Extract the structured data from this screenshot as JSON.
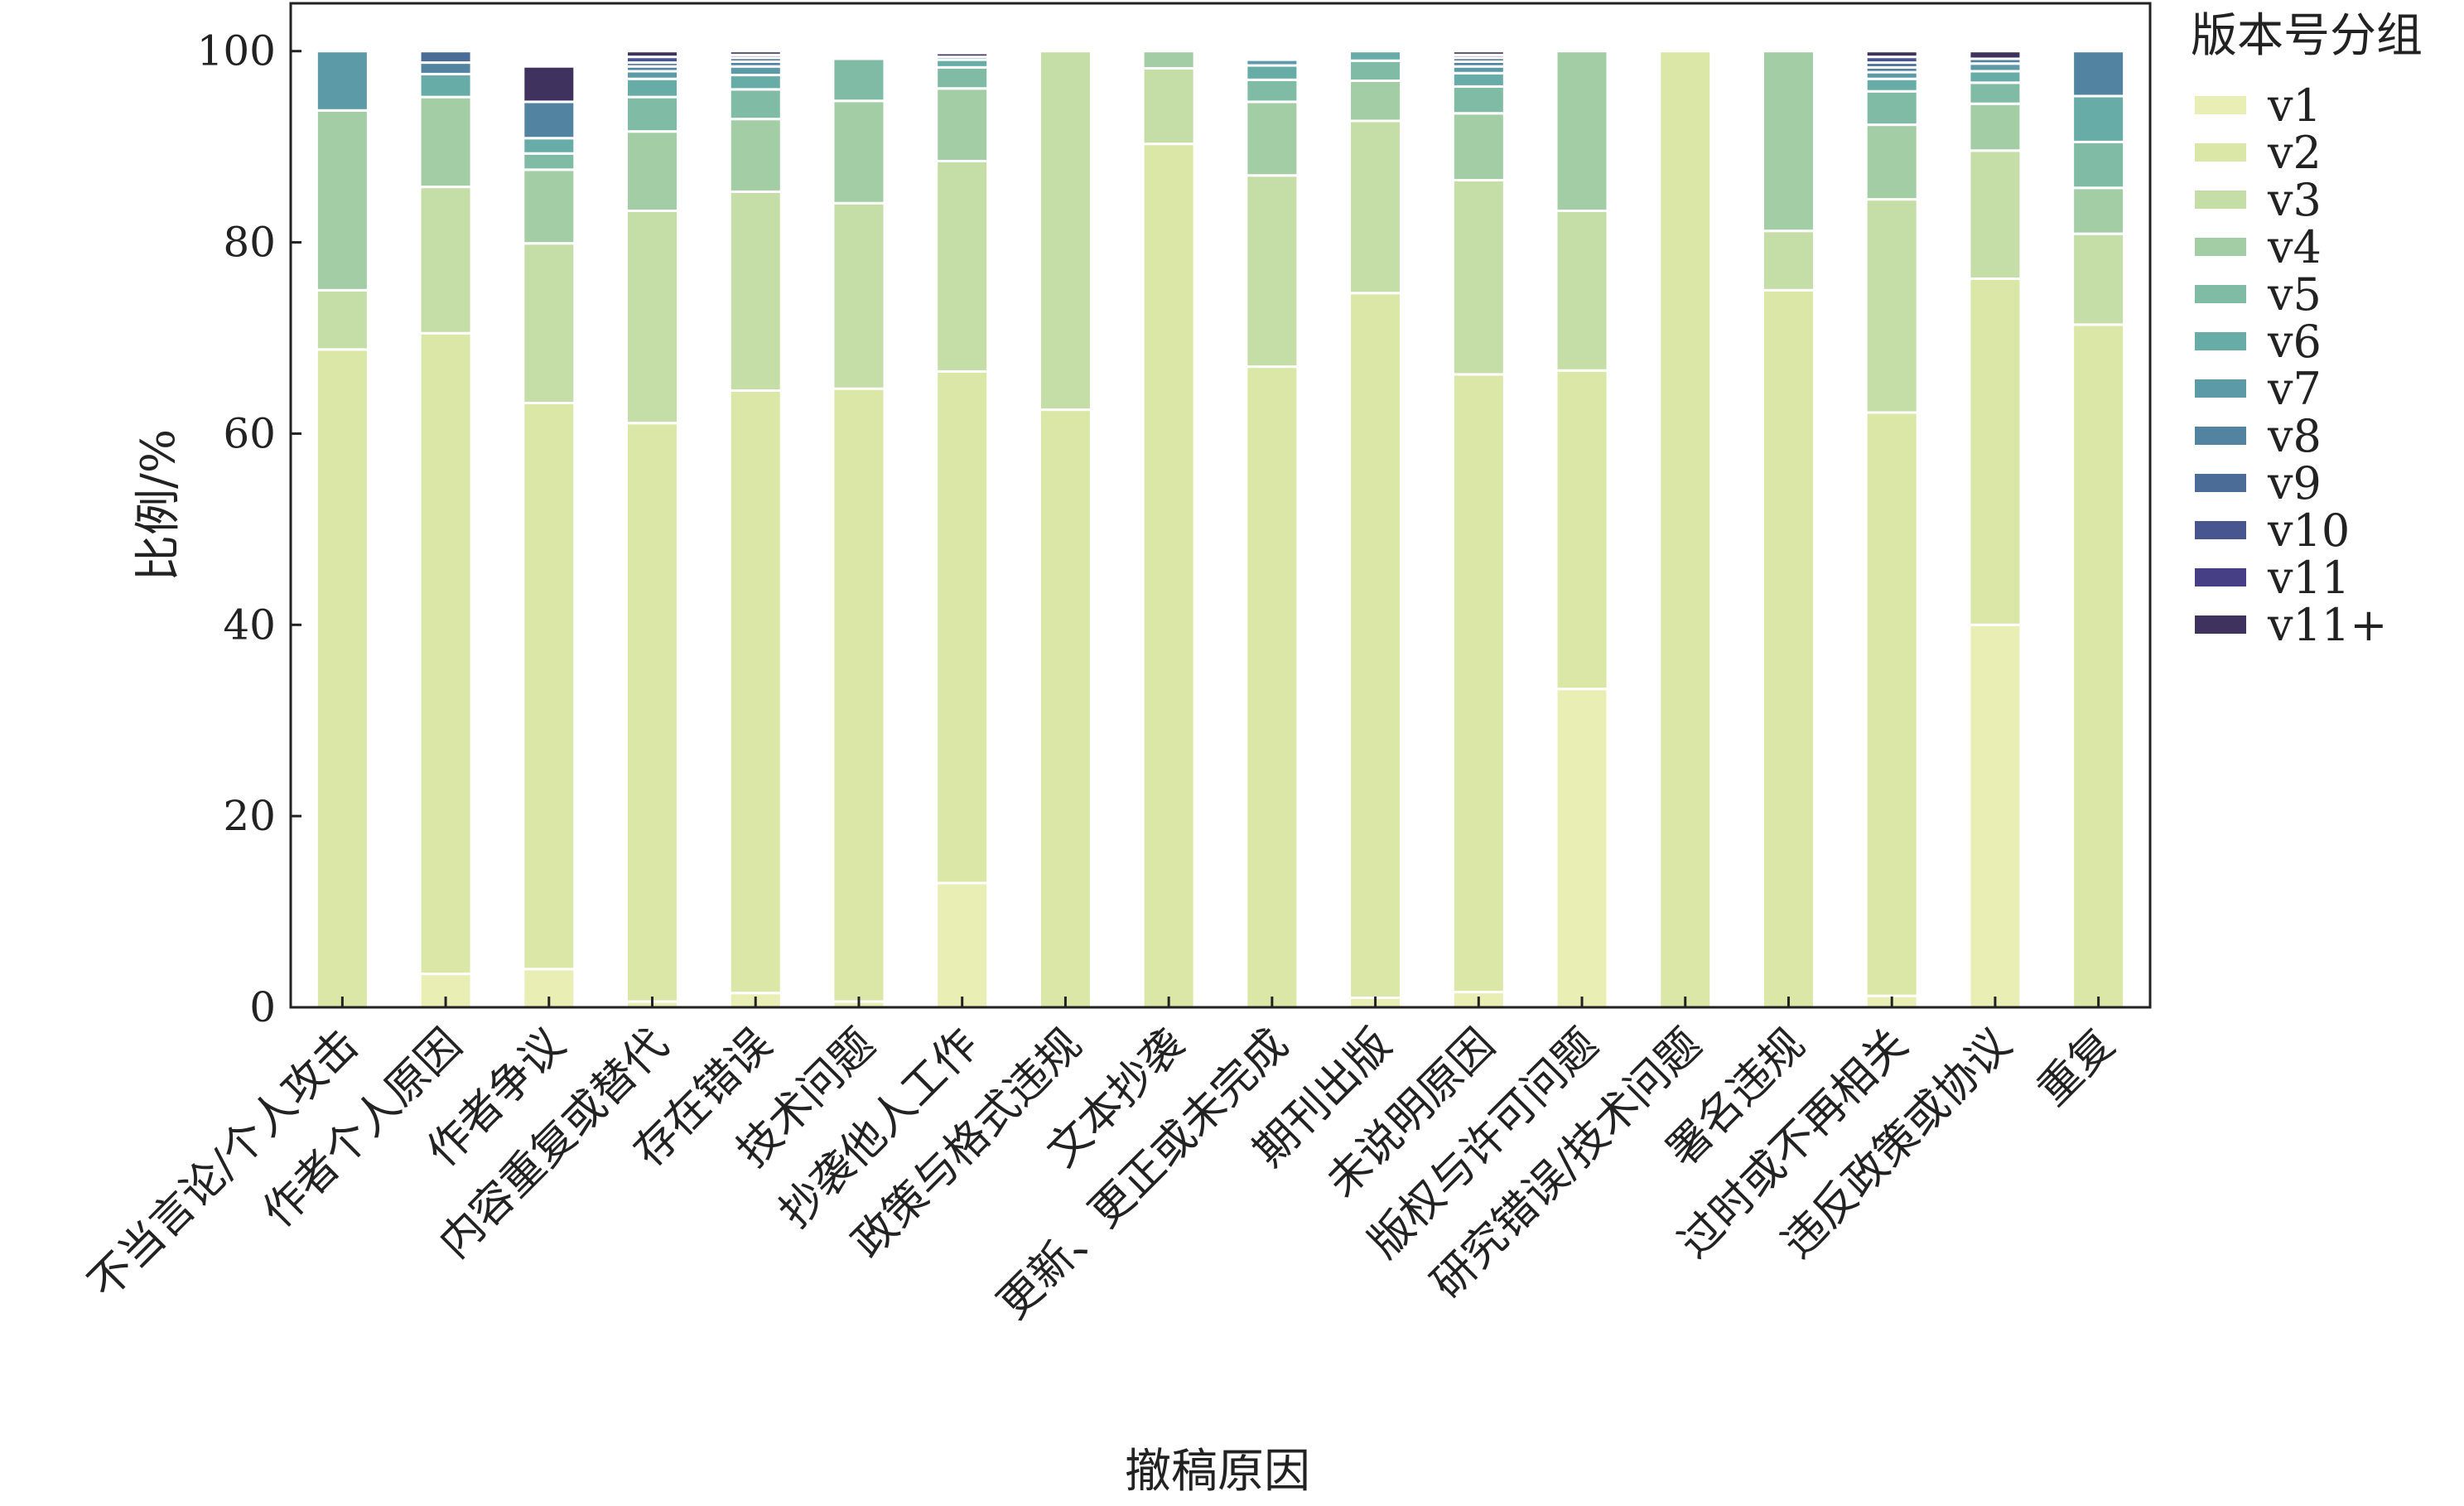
{
  "chart_data": {
    "type": "bar",
    "stacked": true,
    "title": "",
    "xlabel": "撤稿原因",
    "ylabel": "比例/%",
    "ylim": [
      0,
      105
    ],
    "yticks": [
      0,
      20,
      40,
      60,
      80,
      100
    ],
    "grid": false,
    "legend": {
      "title": "版本号分组",
      "placement": "outside-right-top"
    },
    "categories": [
      "不当言论/个人攻击",
      "作者个人原因",
      "作者争议",
      "内容重复或替代",
      "存在错误",
      "技术问题",
      "抄袭他人工作",
      "政策与格式违规",
      "文本抄袭",
      "更新、更正或未完成",
      "期刊出版",
      "未说明原因",
      "版权与许可问题",
      "研究错误/技术问题",
      "署名违规",
      "过时或不再相关",
      "违反政策或协议",
      "重复"
    ],
    "series": [
      {
        "name": "v1",
        "color": "#e9efb4",
        "values": [
          0,
          3.5,
          4,
          0.6,
          1.5,
          0.6,
          13,
          0,
          0,
          0,
          1,
          1.6,
          33.3,
          0,
          0,
          1.2,
          40,
          0
        ]
      },
      {
        "name": "v2",
        "color": "#dbe7a7",
        "values": [
          68.8,
          67,
          59.2,
          60.5,
          63,
          64.1,
          53.5,
          62.5,
          90.3,
          67,
          73.7,
          64.6,
          33.3,
          100,
          75,
          61,
          36.2,
          71.4
        ]
      },
      {
        "name": "v3",
        "color": "#c5dda6",
        "values": [
          6.2,
          15.3,
          16.7,
          22.2,
          20.8,
          19.4,
          22,
          37.5,
          7.9,
          20,
          18,
          20.3,
          16.7,
          0,
          6.2,
          22.3,
          13.4,
          9.5
        ]
      },
      {
        "name": "v4",
        "color": "#a3cea5",
        "values": [
          18.8,
          9.4,
          7.7,
          8.3,
          7.6,
          10.7,
          7.6,
          0,
          1.8,
          7.7,
          4.2,
          7,
          16.7,
          0,
          18.8,
          7.8,
          4.9,
          4.8
        ]
      },
      {
        "name": "v5",
        "color": "#80bba6",
        "values": [
          0,
          0,
          1.7,
          3.6,
          3.1,
          4.4,
          2.2,
          0,
          0,
          2.3,
          2.1,
          2.8,
          0,
          0,
          0,
          3.5,
          2.2,
          4.8
        ]
      },
      {
        "name": "v6",
        "color": "#67aca6",
        "values": [
          0,
          2.4,
          1.6,
          1.9,
          1.5,
          0,
          0.8,
          0,
          0,
          1.5,
          1,
          1.4,
          0,
          0,
          0,
          1.3,
          1.2,
          4.8
        ]
      },
      {
        "name": "v7",
        "color": "#5b9aa6",
        "values": [
          6.2,
          0,
          0,
          0.8,
          0.9,
          0,
          0.3,
          0,
          0,
          0.6,
          0,
          0.7,
          0,
          0,
          0,
          0.7,
          0.8,
          0
        ]
      },
      {
        "name": "v8",
        "color": "#5284a2",
        "values": [
          0,
          1.2,
          3.8,
          0.5,
          0.5,
          0,
          0,
          0,
          0,
          0,
          0,
          0.5,
          0,
          0,
          0,
          0.5,
          0.5,
          4.7
        ]
      },
      {
        "name": "v9",
        "color": "#4b6c96",
        "values": [
          0,
          1.2,
          0,
          0.4,
          0.4,
          0,
          0,
          0,
          0,
          0,
          0,
          0.4,
          0,
          0,
          0,
          0.5,
          0,
          0
        ]
      },
      {
        "name": "v10",
        "color": "#485690",
        "values": [
          0,
          0,
          0,
          0.6,
          0.3,
          0,
          0,
          0,
          0,
          0,
          0,
          0.3,
          0,
          0,
          0,
          0.6,
          0,
          0
        ]
      },
      {
        "name": "v11",
        "color": "#463f86",
        "values": [
          0,
          0,
          0,
          0,
          0,
          0,
          0,
          0,
          0,
          0,
          0,
          0,
          0,
          0,
          0,
          0,
          0,
          0
        ]
      },
      {
        "name": "v11+",
        "color": "#40325e",
        "values": [
          0,
          0,
          3.7,
          0.6,
          0.4,
          0,
          0.4,
          0,
          0,
          0,
          0,
          0.4,
          0,
          0,
          0,
          0.6,
          0.8,
          0
        ]
      }
    ]
  }
}
